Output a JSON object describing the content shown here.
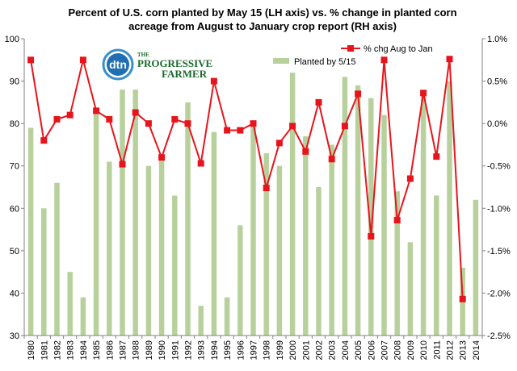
{
  "chart_data": {
    "type": "bar",
    "title_line1": "Percent of U.S. corn planted by May 15  (LH axis) vs. %  change in planted corn",
    "title_line2": "acreage from August to January crop report (RH axis)",
    "categories": [
      "1980",
      "1981",
      "1982",
      "1983",
      "1984",
      "1985",
      "1986",
      "1987",
      "1988",
      "1989",
      "1990",
      "1991",
      "1992",
      "1993",
      "1994",
      "1995",
      "1996",
      "1997",
      "1998",
      "1999",
      "2000",
      "2001",
      "2002",
      "2003",
      "2004",
      "2005",
      "2006",
      "2007",
      "2008",
      "2009",
      "2010",
      "2011",
      "2012",
      "2013",
      "2014"
    ],
    "series": [
      {
        "name": "Planted by 5/15",
        "type": "bar",
        "axis": "left",
        "color": "#b8d19c",
        "values": [
          79,
          60,
          66,
          45,
          39,
          83,
          71,
          88,
          88,
          70,
          72,
          63,
          85,
          37,
          78,
          39,
          56,
          80,
          73,
          70,
          92,
          77,
          65,
          75,
          91,
          89,
          86,
          82,
          64,
          52,
          87,
          63,
          90,
          46,
          62
        ]
      },
      {
        "name": "% chg Aug to Jan",
        "type": "line",
        "axis": "right",
        "color": "#e8141c",
        "values": [
          0.75,
          -0.2,
          0.05,
          0.1,
          0.75,
          0.15,
          0.05,
          -0.48,
          0.13,
          0.0,
          -0.4,
          0.05,
          0.0,
          -0.47,
          0.5,
          -0.08,
          -0.08,
          0.0,
          -0.76,
          -0.23,
          -0.03,
          -0.33,
          0.25,
          -0.42,
          -0.03,
          0.35,
          -1.33,
          0.75,
          -1.14,
          -0.65,
          0.36,
          -0.39,
          0.76,
          -2.07,
          null
        ]
      }
    ],
    "y_left": {
      "min": 30,
      "max": 100,
      "step": 10,
      "ticks": [
        "30",
        "40",
        "50",
        "60",
        "70",
        "80",
        "90",
        "100"
      ]
    },
    "y_right": {
      "min": -2.5,
      "max": 1.0,
      "step": 0.5,
      "ticks": [
        "-2.5%",
        "-2.0%",
        "-1.5%",
        "-1.0%",
        "-0.5%",
        "0.0%",
        "0.5%",
        "1.0%"
      ]
    },
    "legend_placement": "top-right",
    "grid": false,
    "logo": {
      "mark": "dtn",
      "name_line1": "THE",
      "name_line2": "PROGRESSIVE",
      "name_line3": "FARMER"
    }
  }
}
